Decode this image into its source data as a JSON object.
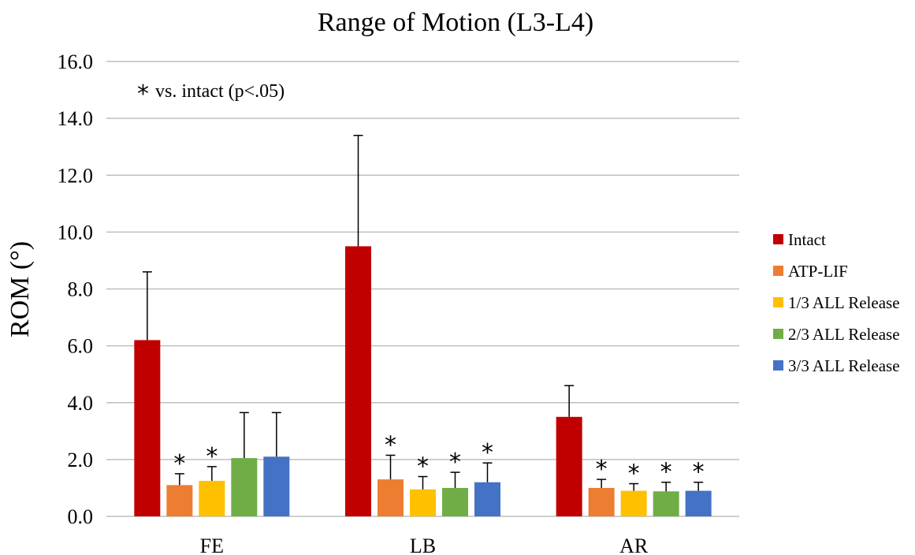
{
  "chart_data": {
    "type": "bar",
    "title": "Range of Motion (L3-L4)",
    "xlabel": "",
    "ylabel": "ROM (°)",
    "ylim": [
      0,
      16
    ],
    "yticks": [
      "0.0",
      "2.0",
      "4.0",
      "6.0",
      "8.0",
      "10.0",
      "12.0",
      "14.0",
      "16.0"
    ],
    "grid": true,
    "legend_position": "right",
    "categories": [
      "FE",
      "LB",
      "AR"
    ],
    "annotation": "* vs. intact (p<.05)",
    "annotation_star": "*",
    "annotation_text": "vs. intact (p<.05)",
    "significance_marker": "*",
    "series": [
      {
        "name": "Intact",
        "color": "#c00000",
        "values": [
          6.2,
          9.5,
          3.5
        ],
        "errors": [
          2.4,
          3.9,
          1.1
        ],
        "significant": [
          false,
          false,
          false
        ]
      },
      {
        "name": "ATP-LIF",
        "color": "#ed7d31",
        "values": [
          1.1,
          1.3,
          1.0
        ],
        "errors": [
          0.4,
          0.85,
          0.3
        ],
        "significant": [
          true,
          true,
          true
        ]
      },
      {
        "name": "1/3 ALL Release",
        "color": "#ffc000",
        "values": [
          1.25,
          0.95,
          0.9
        ],
        "errors": [
          0.5,
          0.45,
          0.25
        ],
        "significant": [
          true,
          true,
          true
        ]
      },
      {
        "name": "2/3 ALL Release",
        "color": "#70ad47",
        "values": [
          2.05,
          1.0,
          0.88
        ],
        "errors": [
          1.6,
          0.55,
          0.32
        ],
        "significant": [
          false,
          true,
          true
        ]
      },
      {
        "name": "3/3 ALL Release",
        "color": "#4472c4",
        "values": [
          2.1,
          1.2,
          0.9
        ],
        "errors": [
          1.55,
          0.68,
          0.3
        ],
        "significant": [
          false,
          true,
          true
        ]
      }
    ]
  }
}
